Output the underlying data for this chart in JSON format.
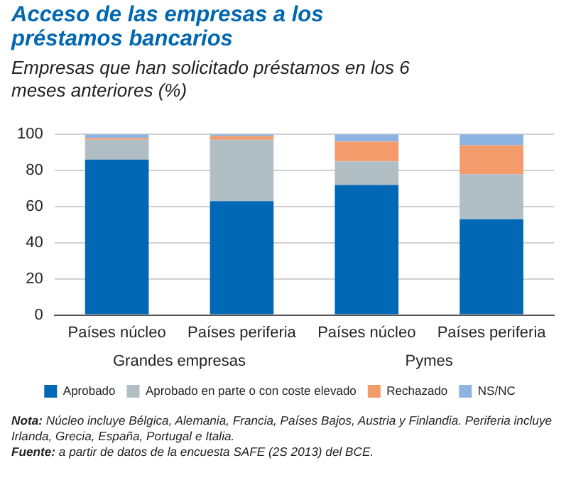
{
  "chart_data": {
    "type": "bar",
    "title": "Acceso de las empresas a los préstamos bancarios",
    "subtitle": "Empresas que han solicitado préstamos en los 6 meses anteriores (%)",
    "categories": [
      "Países núcleo",
      "Países periferia",
      "Países núcleo",
      "Países periferia"
    ],
    "stacked": true,
    "series": [
      {
        "name": "Aprobado",
        "color": "#0068b4",
        "values": [
          86,
          63,
          72,
          53
        ]
      },
      {
        "name": "Aprobado en parte o con coste elevado",
        "color": "#b1bfc4",
        "values": [
          11,
          34,
          13,
          25
        ]
      },
      {
        "name": "Rechazado",
        "color": "#f39b6b",
        "values": [
          1,
          2,
          11,
          16
        ]
      },
      {
        "name": "NS/NC",
        "color": "#8db3e2",
        "values": [
          2,
          1,
          4,
          6
        ]
      }
    ],
    "ylim": [
      0,
      100
    ],
    "yticks": [
      0,
      20,
      40,
      60,
      80,
      100
    ],
    "grid": "y",
    "legend": "bottom",
    "annotations": [
      "Grandes empresas",
      "Pymes",
      "Nota: Núcleo incluye Bélgica, Alemania, Francia, Países Bajos, Austria y Finlandia. Periferia incluye Irlanda, Grecia, España, Portugal e Italia.",
      "Fuente: a partir de datos de la encuesta SAFE (2S 2013) del BCE."
    ]
  }
}
